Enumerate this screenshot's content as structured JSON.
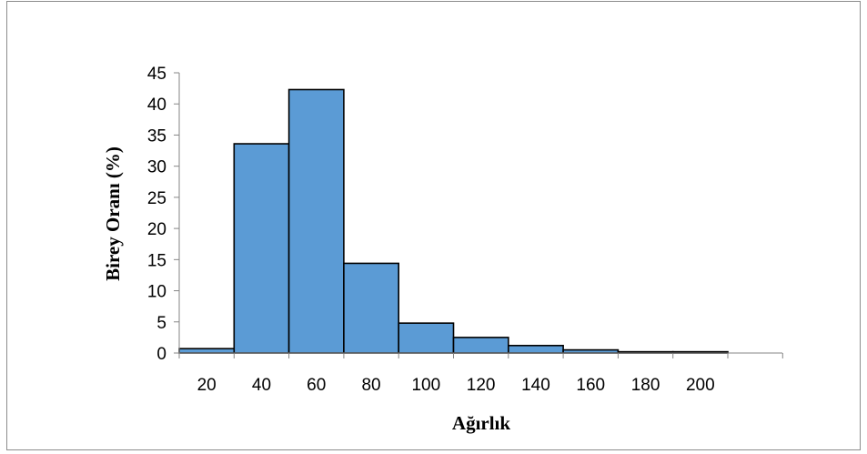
{
  "chart_data": {
    "type": "bar",
    "title": "",
    "xlabel": "Ağırlık",
    "ylabel": "Birey Oranı (%)",
    "ylim": [
      0,
      45
    ],
    "yticks": [
      "0",
      "5",
      "10",
      "15",
      "20",
      "25",
      "30",
      "35",
      "40",
      "45"
    ],
    "categories": [
      "20",
      "40",
      "60",
      "80",
      "100",
      "120",
      "140",
      "160",
      "180",
      "200"
    ],
    "values": [
      0.7,
      33.6,
      42.3,
      14.4,
      4.8,
      2.5,
      1.2,
      0.5,
      0.2,
      0.2
    ],
    "bar_color": "#5b9bd5",
    "bar_edge_color": "#000000",
    "grid": false,
    "legend": false
  }
}
